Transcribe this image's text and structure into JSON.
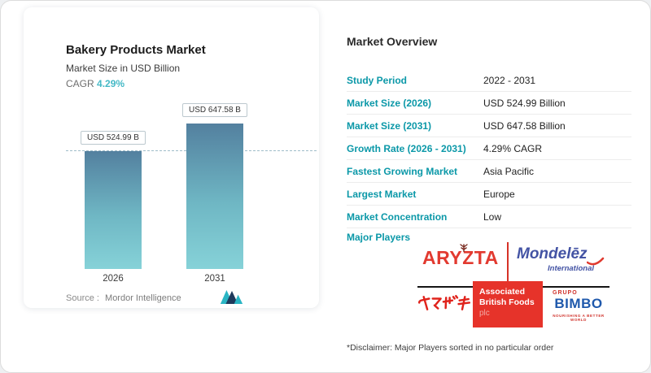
{
  "left_card": {
    "title": "Bakery Products Market",
    "subtitle": "Market Size in USD Billion",
    "cagr_label": "CAGR",
    "cagr_value": "4.29%",
    "source_label": "Source :",
    "source_value": "Mordor Intelligence"
  },
  "chart_data": {
    "type": "bar",
    "title": "Bakery Products Market",
    "subtitle": "Market Size in USD Billion",
    "cagr": "4.29%",
    "categories": [
      "2026",
      "2031"
    ],
    "values": [
      524.99,
      647.58
    ],
    "bar_labels": [
      "USD 524.99 B",
      "USD 647.58 B"
    ],
    "ylabel": "Market Size in USD Billion",
    "ylim": [
      0,
      700
    ],
    "grid": false,
    "reference_line": {
      "y": 524.99,
      "style": "dashed"
    },
    "source": "Mordor Intelligence"
  },
  "overview": {
    "heading": "Market Overview",
    "rows": [
      {
        "label": "Study Period",
        "value": "2022 - 2031"
      },
      {
        "label": "Market Size (2026)",
        "value": "USD 524.99 Billion"
      },
      {
        "label": "Market Size (2031)",
        "value": "USD 647.58 Billion"
      },
      {
        "label": "Growth Rate (2026 - 2031)",
        "value": "4.29% CAGR"
      },
      {
        "label": "Fastest Growing Market",
        "value": "Asia Pacific"
      },
      {
        "label": "Largest Market",
        "value": "Europe"
      },
      {
        "label": "Market Concentration",
        "value": "Low"
      }
    ],
    "major_players_label": "Major Players",
    "major_players": [
      "ARYZTA",
      "Mondelēz International",
      "Yamazaki (ヤマザキ)",
      "Associated British Foods plc",
      "Grupo Bimbo"
    ],
    "disclaimer": "*Disclaimer: Major Players sorted in no particular order"
  },
  "logos": {
    "aryzta": "ARYZTA",
    "mondelez_name": "Mondelēz",
    "mondelez_sub": "International",
    "yamazaki": "ヤマザキ",
    "abf_line1": "Associated",
    "abf_line2": "British Foods",
    "abf_line3": "plc",
    "bimbo_top": "GRUPO",
    "bimbo_main": "BIMBO",
    "bimbo_tagline": "NOURISHING A BETTER WORLD"
  },
  "colors": {
    "accent_teal": "#0b98a8",
    "cagr_teal": "#45b9c6",
    "bar_top": "#53809f",
    "bar_bottom": "#86d2d8"
  }
}
